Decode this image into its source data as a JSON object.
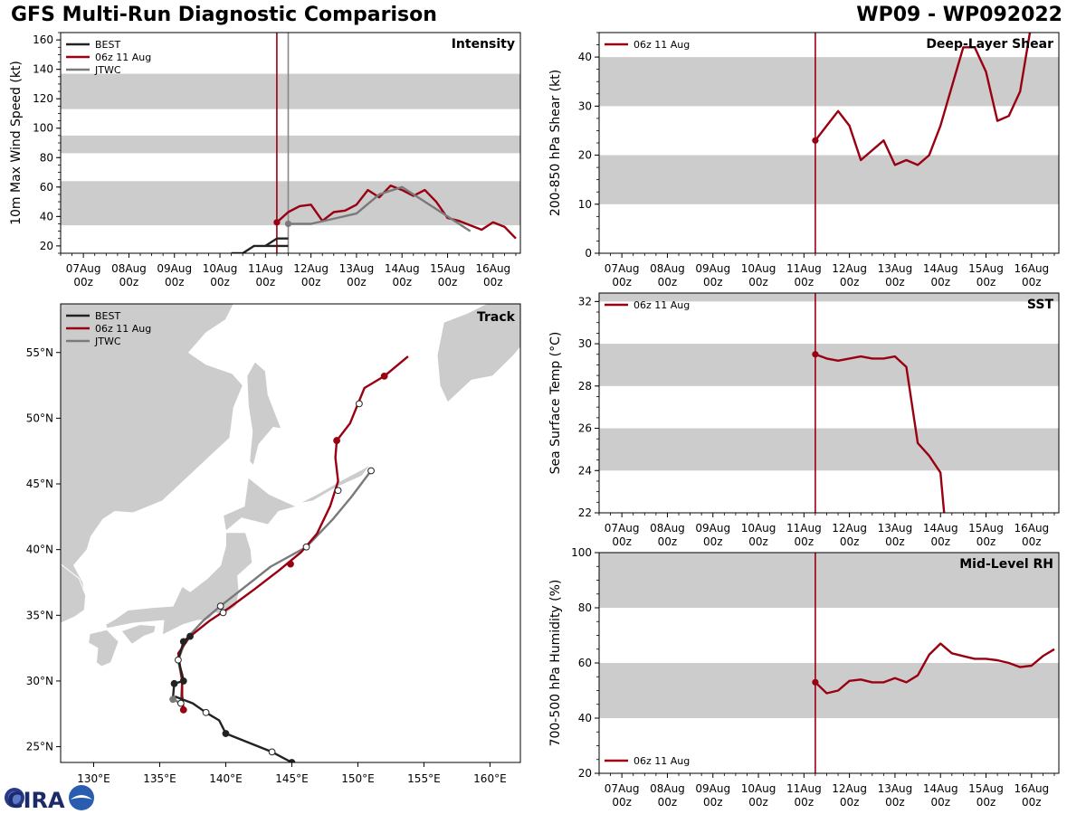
{
  "header": {
    "title": "GFS Multi-Run Diagnostic Comparison",
    "storm_id": "WP09 - WP092022"
  },
  "logo": {
    "text": "CIRA"
  },
  "colors": {
    "best": "#222222",
    "gfs": "#990011",
    "jtwc": "#7a7a7a",
    "band": "#cccccc",
    "land": "#cccccc",
    "border": "#ffffff",
    "initline_jtwc": "#888888"
  },
  "legend_labels": {
    "best": "BEST",
    "gfs": "06z 11 Aug",
    "jtwc": "JTWC"
  },
  "time_axis": {
    "tick_labels": [
      [
        "07Aug",
        "00z"
      ],
      [
        "08Aug",
        "00z"
      ],
      [
        "09Aug",
        "00z"
      ],
      [
        "10Aug",
        "00z"
      ],
      [
        "11Aug",
        "00z"
      ],
      [
        "12Aug",
        "00z"
      ],
      [
        "13Aug",
        "00z"
      ],
      [
        "14Aug",
        "00z"
      ],
      [
        "15Aug",
        "00z"
      ],
      [
        "16Aug",
        "00z"
      ]
    ],
    "tick_days": [
      0,
      1,
      2,
      3,
      4,
      5,
      6,
      7,
      8,
      9
    ],
    "range_days": [
      -0.5,
      9.6
    ],
    "gfs_init_day": 4.25,
    "jtwc_init_day": 4.5
  },
  "chart_data": [
    {
      "id": "intensity",
      "type": "line",
      "title": "Intensity",
      "ylabel": "10m Max Wind Speed (kt)",
      "ylim": [
        15,
        165
      ],
      "yticks": [
        20,
        40,
        60,
        80,
        100,
        120,
        140,
        160
      ],
      "bands": [
        [
          34,
          64
        ],
        [
          83,
          95
        ],
        [
          113,
          137
        ]
      ],
      "legend": [
        "best",
        "gfs",
        "jtwc"
      ],
      "series": [
        {
          "name": "BEST",
          "key": "best",
          "x": [
            3.25,
            3.5,
            3.75,
            4.0,
            4.25,
            4.5
          ],
          "values": [
            15,
            15,
            20,
            20,
            20,
            20
          ]
        },
        {
          "name": "BEST",
          "key": "best",
          "x": [
            4.0,
            4.25,
            4.5
          ],
          "values": [
            20,
            25,
            25
          ]
        },
        {
          "name": "06z 11 Aug",
          "key": "gfs",
          "x": [
            4.25,
            4.5,
            4.75,
            5.0,
            5.25,
            5.5,
            5.75,
            6.0,
            6.25,
            6.5,
            6.75,
            7.0,
            7.25,
            7.5,
            7.75,
            8.0,
            8.25,
            8.5,
            8.75,
            9.0,
            9.25,
            9.5
          ],
          "values": [
            36,
            43,
            47,
            48,
            37,
            43,
            44,
            48,
            58,
            53,
            61,
            58,
            54,
            58,
            50,
            39,
            37,
            34,
            31,
            36,
            33,
            25
          ],
          "marker_first": true
        },
        {
          "name": "JTWC",
          "key": "jtwc",
          "x": [
            4.5,
            5.0,
            6.0,
            6.5,
            7.0,
            8.0,
            8.5
          ],
          "values": [
            35,
            35,
            42,
            55,
            60,
            40,
            30
          ],
          "marker_first": true
        }
      ]
    },
    {
      "id": "shear",
      "type": "line",
      "title": "Deep-Layer Shear",
      "ylabel": "200-850 hPa Shear (kt)",
      "ylim": [
        0,
        45
      ],
      "yticks": [
        0,
        10,
        20,
        30,
        40
      ],
      "bands": [
        [
          10,
          20
        ],
        [
          30,
          40
        ]
      ],
      "legend": [
        "gfs"
      ],
      "series": [
        {
          "name": "06z 11 Aug",
          "key": "gfs",
          "x": [
            4.25,
            4.5,
            4.75,
            5.0,
            5.25,
            5.75,
            6.0,
            6.25,
            6.5,
            6.75,
            7.0,
            7.25,
            7.5,
            7.75,
            8.0,
            8.25,
            8.5,
            8.75,
            9.0
          ],
          "values": [
            23,
            26,
            29,
            26,
            19,
            23,
            18,
            19,
            18,
            20,
            26,
            34,
            42,
            42,
            37,
            27,
            28,
            33,
            47
          ],
          "marker_first": true
        }
      ]
    },
    {
      "id": "sst",
      "type": "line",
      "title": "SST",
      "ylabel": "Sea Surface Temp (°C)",
      "ylim": [
        22,
        32.4
      ],
      "yticks": [
        22,
        24,
        26,
        28,
        30,
        32
      ],
      "bands": [
        [
          24,
          26
        ],
        [
          28,
          30
        ],
        [
          32,
          32.4
        ]
      ],
      "legend": [
        "gfs"
      ],
      "series": [
        {
          "name": "06z 11 Aug",
          "key": "gfs",
          "x": [
            4.25,
            4.5,
            4.75,
            5.0,
            5.25,
            5.5,
            5.75,
            6.0,
            6.25,
            6.5,
            6.75,
            7.0,
            7.1
          ],
          "values": [
            29.5,
            29.3,
            29.2,
            29.3,
            29.4,
            29.3,
            29.3,
            29.4,
            28.9,
            25.3,
            24.7,
            23.9,
            21.5
          ],
          "marker_first": true
        }
      ]
    },
    {
      "id": "rh",
      "type": "line",
      "title": "Mid-Level RH",
      "ylabel": "700-500 hPa Humidity (%)",
      "ylim": [
        20,
        100
      ],
      "yticks": [
        20,
        40,
        60,
        80,
        100
      ],
      "bands": [
        [
          40,
          60
        ],
        [
          80,
          100
        ]
      ],
      "legend": [
        "gfs"
      ],
      "legend_pos": "bottom-left",
      "series": [
        {
          "name": "06z 11 Aug",
          "key": "gfs",
          "x": [
            4.25,
            4.5,
            4.75,
            5.0,
            5.25,
            5.5,
            5.75,
            6.0,
            6.25,
            6.5,
            6.75,
            7.0,
            7.25,
            7.5,
            7.75,
            8.0,
            8.25,
            8.5,
            8.75,
            9.0,
            9.25,
            9.5
          ],
          "values": [
            53,
            49,
            50,
            53.5,
            54,
            53,
            53,
            54.5,
            53,
            55.5,
            63,
            67,
            63.5,
            62.5,
            61.5,
            61.5,
            61,
            60,
            58.5,
            59,
            62.5,
            65
          ],
          "marker_first": true
        }
      ]
    },
    {
      "id": "track",
      "type": "scatter",
      "title": "Track",
      "xlim": [
        127.5,
        162.3
      ],
      "ylim": [
        23.8,
        58.7
      ],
      "xticks": [
        130,
        135,
        140,
        145,
        150,
        155,
        160
      ],
      "xtick_labels": [
        "130°E",
        "135°E",
        "140°E",
        "145°E",
        "150°E",
        "155°E",
        "160°E"
      ],
      "yticks": [
        25,
        30,
        35,
        40,
        45,
        50,
        55
      ],
      "ytick_labels": [
        "25°N",
        "30°N",
        "35°N",
        "40°N",
        "45°N",
        "50°N",
        "55°N"
      ],
      "legend": [
        "best",
        "gfs",
        "jtwc"
      ],
      "series": [
        {
          "name": "BEST",
          "key": "best",
          "points": [
            [
              145,
              23.8
            ],
            [
              143.5,
              24.6
            ],
            [
              140,
              26
            ],
            [
              139.5,
              27
            ],
            [
              138.5,
              27.6
            ],
            [
              137.5,
              28.3
            ],
            [
              136.2,
              28.8
            ],
            [
              136.0,
              28.7
            ],
            [
              136.1,
              29.8
            ],
            [
              136.8,
              30.0
            ],
            [
              136.7,
              30.5
            ],
            [
              136.4,
              31.6
            ],
            [
              136.8,
              33.0
            ],
            [
              137.3,
              33.4
            ]
          ],
          "markers": [
            [
              145,
              23.8,
              "f"
            ],
            [
              143.5,
              24.6,
              "o"
            ],
            [
              140,
              26,
              "f"
            ],
            [
              138.5,
              27.6,
              "o"
            ],
            [
              136.8,
              30,
              "f"
            ],
            [
              136.1,
              29.8,
              "f"
            ],
            [
              136.8,
              33.0,
              "f"
            ],
            [
              137.3,
              33.4,
              "f"
            ]
          ]
        },
        {
          "name": "06z 11 Aug",
          "key": "gfs",
          "points": [
            [
              136.8,
              27.8
            ],
            [
              136.7,
              28.9
            ],
            [
              136.7,
              30.0
            ],
            [
              136.4,
              32.1
            ],
            [
              137.3,
              33.4
            ],
            [
              138.8,
              34.6
            ],
            [
              140.3,
              35.6
            ],
            [
              142.2,
              37.0
            ],
            [
              144.0,
              38.4
            ],
            [
              145.7,
              39.8
            ],
            [
              146.9,
              41.2
            ],
            [
              147.9,
              43.3
            ],
            [
              148.5,
              45.2
            ],
            [
              148.3,
              47.0
            ],
            [
              148.4,
              48.3
            ],
            [
              149.4,
              49.6
            ],
            [
              150.5,
              52.3
            ],
            [
              152.0,
              53.2
            ],
            [
              153.8,
              54.7
            ]
          ],
          "markers": [
            [
              136.8,
              27.8,
              "f"
            ],
            [
              144.9,
              38.9,
              "f"
            ],
            [
              148.4,
              48.3,
              "f"
            ],
            [
              150.1,
              51.1,
              "o"
            ],
            [
              152.0,
              53.2,
              "f"
            ]
          ]
        },
        {
          "name": "JTWC",
          "key": "jtwc",
          "points": [
            [
              136.0,
              28.6
            ],
            [
              136.6,
              28.3
            ],
            [
              136.7,
              30.0
            ],
            [
              136.4,
              31.6
            ],
            [
              137.0,
              33.2
            ],
            [
              138.3,
              34.6
            ],
            [
              139.6,
              35.7
            ],
            [
              141.5,
              37.2
            ],
            [
              143.4,
              38.7
            ],
            [
              146.1,
              40.2
            ],
            [
              148.1,
              42.3
            ],
            [
              149.5,
              44.0
            ],
            [
              151.0,
              46.0
            ]
          ],
          "markers": [
            [
              136.0,
              28.6,
              "g"
            ],
            [
              136.6,
              28.3,
              "o"
            ],
            [
              136.4,
              31.6,
              "o"
            ],
            [
              139.8,
              35.2,
              "o"
            ],
            [
              139.6,
              35.7,
              "o"
            ],
            [
              146.1,
              40.2,
              "o"
            ],
            [
              148.5,
              44.5,
              "o"
            ],
            [
              151.0,
              46.0,
              "o"
            ]
          ]
        }
      ]
    }
  ]
}
